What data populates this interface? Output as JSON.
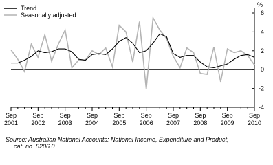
{
  "chart_data": {
    "type": "line",
    "y_unit": "%",
    "categories": [
      [
        "Sep",
        "2001"
      ],
      null,
      null,
      null,
      [
        "Sep",
        "2002"
      ],
      null,
      null,
      null,
      [
        "Sep",
        "2003"
      ],
      null,
      null,
      null,
      [
        "Sep",
        "2004"
      ],
      null,
      null,
      null,
      [
        "Sep",
        "2005"
      ],
      null,
      null,
      null,
      [
        "Sep",
        "2006"
      ],
      null,
      null,
      null,
      [
        "Sep",
        "2007"
      ],
      null,
      null,
      null,
      [
        "Sep",
        "2008"
      ],
      null,
      null,
      null,
      [
        "Sep",
        "2009"
      ],
      null,
      null,
      null,
      [
        "Sep",
        "2010"
      ]
    ],
    "series": [
      {
        "name": "Trend",
        "color": "#000000",
        "values": [
          0.7,
          0.7,
          1.0,
          1.4,
          2.0,
          1.8,
          1.9,
          2.2,
          2.2,
          1.9,
          1.1,
          1.0,
          1.6,
          1.7,
          1.6,
          2.2,
          3.0,
          3.4,
          2.8,
          1.8,
          2.0,
          2.8,
          3.8,
          3.5,
          1.7,
          1.3,
          1.5,
          1.5,
          0.8,
          0.3,
          0.2,
          0.4,
          0.6,
          1.1,
          1.5,
          1.6,
          1.3
        ]
      },
      {
        "name": "Seasonally adjusted",
        "color": "#b4b4b4",
        "values": [
          2.1,
          1.1,
          -0.2,
          2.7,
          1.3,
          3.7,
          0.9,
          2.7,
          4.2,
          0.2,
          1.0,
          1.0,
          2.0,
          1.6,
          2.3,
          0.3,
          4.7,
          4.0,
          0.8,
          5.1,
          -2.1,
          5.5,
          4.2,
          3.3,
          1.4,
          0.2,
          2.3,
          1.8,
          -0.4,
          -0.5,
          2.4,
          -1.3,
          2.2,
          1.8,
          2.0,
          1.5,
          0.5
        ]
      }
    ],
    "ylim": [
      -4,
      6
    ],
    "yticks": [
      -4,
      -2,
      0,
      2,
      4,
      6
    ],
    "source": [
      "Source: Australian National Accounts: National Income, Expenditure and Product,",
      "cat. no. 5206.0."
    ]
  }
}
